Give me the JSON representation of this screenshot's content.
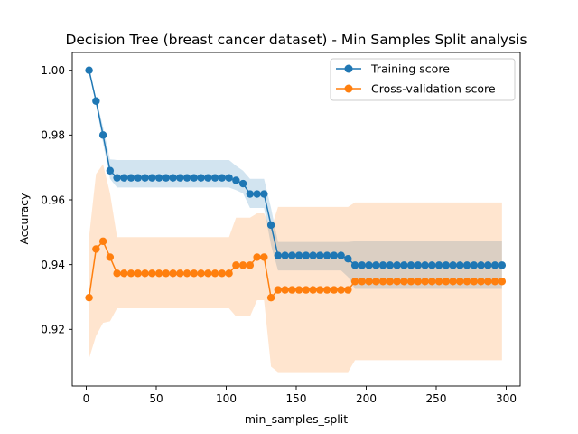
{
  "chart_data": {
    "type": "line",
    "title": "Decision Tree (breast cancer dataset) - Min Samples Split analysis",
    "xlabel": "min_samples_split",
    "ylabel": "Accuracy",
    "xlim": [
      -10,
      310
    ],
    "ylim": [
      0.9025,
      1.0055
    ],
    "xticks": [
      0,
      50,
      100,
      150,
      200,
      250,
      300
    ],
    "xtick_labels": [
      "0",
      "50",
      "100",
      "150",
      "200",
      "250",
      "300"
    ],
    "yticks": [
      0.92,
      0.94,
      0.96,
      0.98,
      1.0
    ],
    "ytick_labels": [
      "0.92",
      "0.94",
      "0.96",
      "0.98",
      "1.00"
    ],
    "grid": false,
    "legend_position": "top-right",
    "x": [
      2,
      7,
      12,
      17,
      22,
      27,
      32,
      37,
      42,
      47,
      52,
      57,
      62,
      67,
      72,
      77,
      82,
      87,
      92,
      97,
      102,
      107,
      112,
      117,
      122,
      127,
      132,
      137,
      142,
      147,
      152,
      157,
      162,
      167,
      172,
      177,
      182,
      187,
      192,
      197,
      202,
      207,
      212,
      217,
      222,
      227,
      232,
      237,
      242,
      247,
      252,
      257,
      262,
      267,
      272,
      277,
      282,
      287,
      292,
      297
    ],
    "series": [
      {
        "name": "Training score",
        "color": "#1f77b4",
        "band_color": "#1f77b4",
        "values": [
          1.0,
          0.9905,
          0.98,
          0.969,
          0.9668,
          0.9668,
          0.9668,
          0.9668,
          0.9668,
          0.9668,
          0.9668,
          0.9668,
          0.9668,
          0.9668,
          0.9668,
          0.9668,
          0.9668,
          0.9668,
          0.9668,
          0.9668,
          0.9668,
          0.966,
          0.965,
          0.9618,
          0.9618,
          0.9618,
          0.9522,
          0.9428,
          0.9428,
          0.9428,
          0.9428,
          0.9428,
          0.9428,
          0.9428,
          0.9428,
          0.9428,
          0.9428,
          0.9418,
          0.9398,
          0.9398,
          0.9398,
          0.9398,
          0.9398,
          0.9398,
          0.9398,
          0.9398,
          0.9398,
          0.9398,
          0.9398,
          0.9398,
          0.9398,
          0.9398,
          0.9398,
          0.9398,
          0.9398,
          0.9398,
          0.9398,
          0.9398,
          0.9398,
          0.9398
        ],
        "lower": [
          1.0,
          0.9895,
          0.9775,
          0.9665,
          0.9638,
          0.9638,
          0.9638,
          0.9638,
          0.9638,
          0.9638,
          0.9638,
          0.9638,
          0.9638,
          0.9638,
          0.9638,
          0.9638,
          0.9638,
          0.9638,
          0.9638,
          0.9638,
          0.9638,
          0.963,
          0.962,
          0.9575,
          0.9575,
          0.9575,
          0.946,
          0.9382,
          0.9382,
          0.9382,
          0.9382,
          0.9382,
          0.9382,
          0.9382,
          0.9382,
          0.9382,
          0.9382,
          0.9362,
          0.9325,
          0.9325,
          0.9325,
          0.9325,
          0.9325,
          0.9325,
          0.9325,
          0.9325,
          0.9325,
          0.9325,
          0.9325,
          0.9325,
          0.9325,
          0.9325,
          0.9325,
          0.9325,
          0.9325,
          0.9325,
          0.9325,
          0.9325,
          0.9325,
          0.9325
        ],
        "upper": [
          1.0,
          0.9915,
          0.9825,
          0.9725,
          0.9723,
          0.9723,
          0.9723,
          0.9723,
          0.9723,
          0.9723,
          0.9723,
          0.9723,
          0.9723,
          0.9723,
          0.9723,
          0.9723,
          0.9723,
          0.9723,
          0.9723,
          0.9723,
          0.9723,
          0.9705,
          0.969,
          0.9665,
          0.9665,
          0.9665,
          0.9575,
          0.947,
          0.947,
          0.947,
          0.947,
          0.947,
          0.947,
          0.947,
          0.947,
          0.947,
          0.947,
          0.947,
          0.9472,
          0.9472,
          0.9472,
          0.9472,
          0.9472,
          0.9472,
          0.9472,
          0.9472,
          0.9472,
          0.9472,
          0.9472,
          0.9472,
          0.9472,
          0.9472,
          0.9472,
          0.9472,
          0.9472,
          0.9472,
          0.9472,
          0.9472,
          0.9472,
          0.9472
        ]
      },
      {
        "name": "Cross-validation score",
        "color": "#ff7f0e",
        "band_color": "#ff7f0e",
        "values": [
          0.9298,
          0.9448,
          0.9472,
          0.9423,
          0.9373,
          0.9373,
          0.9373,
          0.9373,
          0.9373,
          0.9373,
          0.9373,
          0.9373,
          0.9373,
          0.9373,
          0.9373,
          0.9373,
          0.9373,
          0.9373,
          0.9373,
          0.9373,
          0.9373,
          0.9398,
          0.9398,
          0.9398,
          0.9423,
          0.9423,
          0.9298,
          0.9322,
          0.9322,
          0.9322,
          0.9322,
          0.9322,
          0.9322,
          0.9322,
          0.9322,
          0.9322,
          0.9322,
          0.9322,
          0.9348,
          0.9348,
          0.9348,
          0.9348,
          0.9348,
          0.9348,
          0.9348,
          0.9348,
          0.9348,
          0.9348,
          0.9348,
          0.9348,
          0.9348,
          0.9348,
          0.9348,
          0.9348,
          0.9348,
          0.9348,
          0.9348,
          0.9348,
          0.9348,
          0.9348
        ],
        "lower": [
          0.911,
          0.918,
          0.922,
          0.9225,
          0.9265,
          0.9265,
          0.9265,
          0.9265,
          0.9265,
          0.9265,
          0.9265,
          0.9265,
          0.9265,
          0.9265,
          0.9265,
          0.9265,
          0.9265,
          0.9265,
          0.9265,
          0.9265,
          0.9265,
          0.924,
          0.924,
          0.924,
          0.929,
          0.929,
          0.9085,
          0.9068,
          0.9068,
          0.9068,
          0.9068,
          0.9068,
          0.9068,
          0.9068,
          0.9068,
          0.9068,
          0.9068,
          0.9068,
          0.9105,
          0.9105,
          0.9105,
          0.9105,
          0.9105,
          0.9105,
          0.9105,
          0.9105,
          0.9105,
          0.9105,
          0.9105,
          0.9105,
          0.9105,
          0.9105,
          0.9105,
          0.9105,
          0.9105,
          0.9105,
          0.9105,
          0.9105,
          0.9105,
          0.9105
        ],
        "upper": [
          0.9485,
          0.968,
          0.971,
          0.962,
          0.9485,
          0.9485,
          0.9485,
          0.9485,
          0.9485,
          0.9485,
          0.9485,
          0.9485,
          0.9485,
          0.9485,
          0.9485,
          0.9485,
          0.9485,
          0.9485,
          0.9485,
          0.9485,
          0.9485,
          0.9545,
          0.9545,
          0.9545,
          0.9558,
          0.9558,
          0.951,
          0.9578,
          0.9578,
          0.9578,
          0.9578,
          0.9578,
          0.9578,
          0.9578,
          0.9578,
          0.9578,
          0.9578,
          0.9578,
          0.9592,
          0.9592,
          0.9592,
          0.9592,
          0.9592,
          0.9592,
          0.9592,
          0.9592,
          0.9592,
          0.9592,
          0.9592,
          0.9592,
          0.9592,
          0.9592,
          0.9592,
          0.9592,
          0.9592,
          0.9592,
          0.9592,
          0.9592,
          0.9592,
          0.9592
        ]
      }
    ]
  }
}
